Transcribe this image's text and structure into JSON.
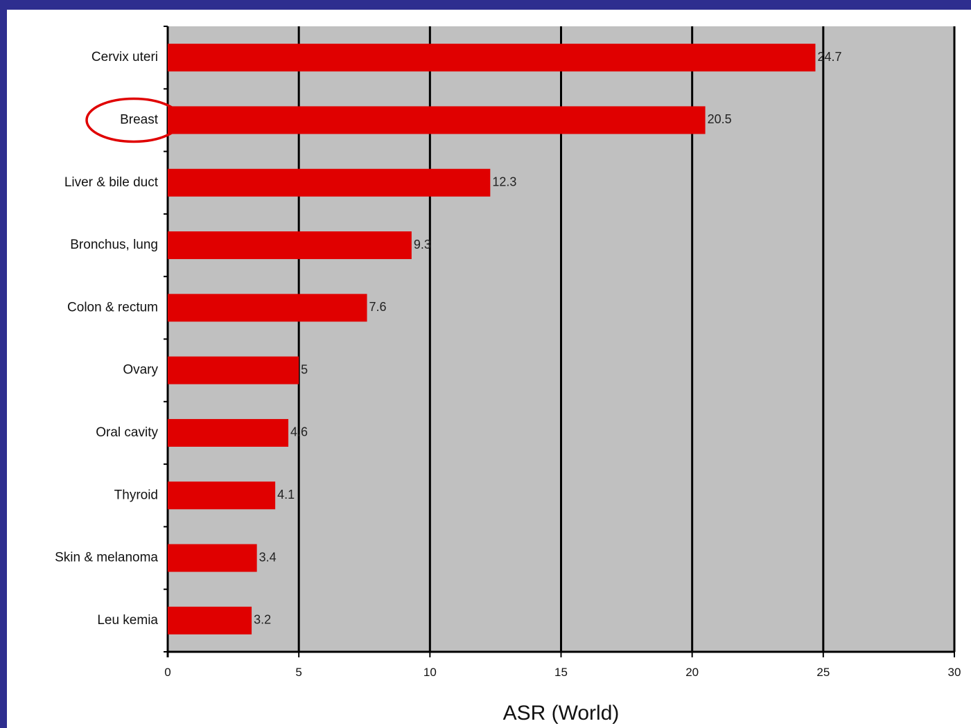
{
  "chart_data": {
    "type": "bar",
    "orientation": "horizontal",
    "categories": [
      "Cervix uteri",
      "Breast",
      "Liver & bile duct",
      "Bronchus, lung",
      "Colon & rectum",
      "Ovary",
      "Oral cavity",
      "Thyroid",
      "Skin & melanoma",
      "Leu kemia"
    ],
    "values": [
      24.7,
      20.5,
      12.3,
      9.3,
      7.6,
      5,
      4.6,
      4.1,
      3.4,
      3.2
    ],
    "value_labels": [
      "24.7",
      "20.5",
      "12.3",
      "9.3",
      "7.6",
      "5",
      "4.6",
      "4.1",
      "3.4",
      "3.2"
    ],
    "xlabel": "ASR (World)",
    "ylabel": "",
    "xlim": [
      0,
      30
    ],
    "xticks": [
      0,
      5,
      10,
      15,
      20,
      25,
      30
    ],
    "grid": true,
    "highlighted_category": "Breast",
    "colors": {
      "bar": "#e00000",
      "plot_background": "#c0c0c0",
      "frame_border": "#2e2e8f",
      "highlight_ring": "#e00000",
      "gridline": "#000000"
    }
  }
}
